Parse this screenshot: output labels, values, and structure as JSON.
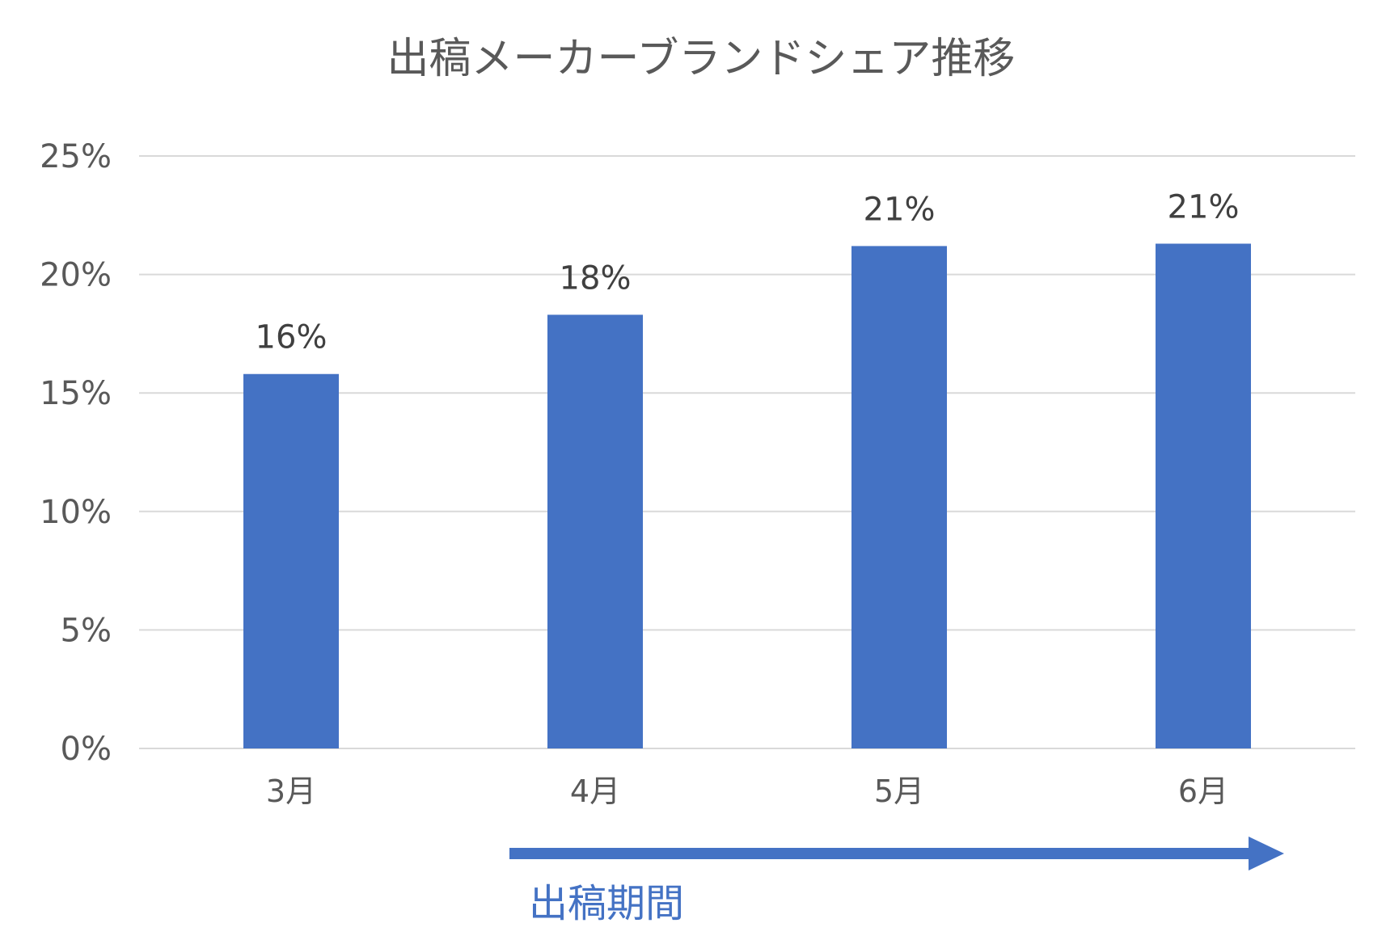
{
  "chart_data": {
    "type": "bar",
    "title": "出稿メーカーブランドシェア推移",
    "xlabel": "",
    "ylabel": "",
    "categories": [
      "3月",
      "4月",
      "5月",
      "6月"
    ],
    "values": [
      15.8,
      18.3,
      21.2,
      21.3
    ],
    "data_labels": [
      "16%",
      "18%",
      "21%",
      "21%"
    ],
    "ylim": [
      0,
      25
    ],
    "yticks": [
      0,
      5,
      10,
      15,
      20,
      25
    ],
    "ytick_labels": [
      "0%",
      "5%",
      "10%",
      "15%",
      "20%",
      "25%"
    ],
    "grid": true,
    "bar_color": "#4472c4",
    "annotation": {
      "label": "出稿期間",
      "arrow_from_category": "4月",
      "arrow_to_category": "6月",
      "color": "#4472c4"
    }
  }
}
